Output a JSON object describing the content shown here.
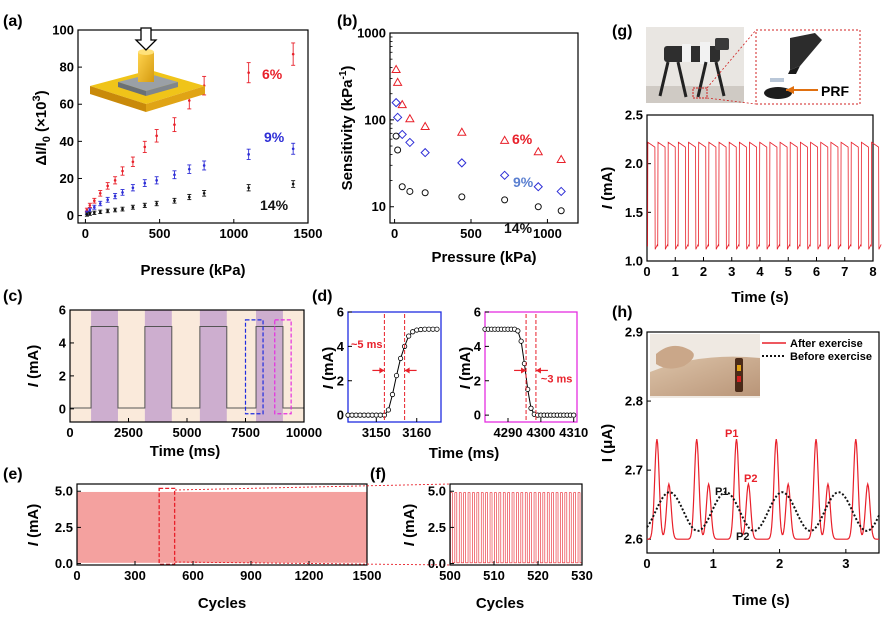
{
  "chart_data": [
    {
      "id": "a",
      "type": "scatter",
      "panel_label": "(a)",
      "xlabel": "Pressure (kPa)",
      "ylabel": "ΔI/I0 (×10³)",
      "xlim": [
        -50,
        1500
      ],
      "ylim": [
        -4,
        100
      ],
      "xticks": [
        0,
        500,
        1000,
        1500
      ],
      "yticks": [
        0,
        20,
        40,
        60,
        80,
        100
      ],
      "xtick_labels": [
        "0",
        "500",
        "1000",
        "1500"
      ],
      "ytick_labels": [
        "0",
        "20",
        "40",
        "60",
        "80",
        "100"
      ],
      "series": [
        {
          "name": "6%",
          "color": "#e8202a",
          "marker": "errorbar",
          "x": [
            10,
            30,
            60,
            100,
            150,
            200,
            250,
            320,
            400,
            480,
            600,
            700,
            800,
            1100,
            1400
          ],
          "y": [
            3,
            5.5,
            8,
            12,
            16,
            19,
            24,
            29,
            37,
            43,
            49,
            62,
            70,
            77,
            87
          ]
        },
        {
          "name": "9%",
          "color": "#2e2ed6",
          "marker": "errorbar",
          "x": [
            10,
            30,
            60,
            100,
            150,
            200,
            250,
            320,
            400,
            480,
            600,
            700,
            800,
            1100,
            1400
          ],
          "y": [
            1.5,
            3,
            4.5,
            6.5,
            8.5,
            10.5,
            12.5,
            15,
            17.5,
            19,
            22,
            25,
            27,
            33,
            36
          ]
        },
        {
          "name": "14%",
          "color": "#111111",
          "marker": "errorbar",
          "x": [
            10,
            30,
            60,
            100,
            150,
            200,
            250,
            320,
            400,
            480,
            600,
            700,
            800,
            1100,
            1400
          ],
          "y": [
            0.5,
            1,
            1.5,
            2,
            2.5,
            3,
            3.5,
            4.5,
            5.5,
            6.5,
            8,
            10,
            12,
            15,
            17
          ]
        }
      ]
    },
    {
      "id": "b",
      "type": "scatter",
      "panel_label": "(b)",
      "yscale": "log",
      "xlabel": "Pressure (kPa)",
      "ylabel": "Sensitivity (kPa-1)",
      "xlim": [
        -30,
        1200
      ],
      "ylim": [
        6.5,
        1000
      ],
      "xticks": [
        0,
        500,
        1000
      ],
      "yticks": [
        10,
        100,
        1000
      ],
      "xtick_labels": [
        "0",
        "500",
        "1000"
      ],
      "ytick_labels": [
        "10",
        "100",
        "1000"
      ],
      "series": [
        {
          "name": "6%",
          "color": "#e8202a",
          "marker": "triangle",
          "x": [
            10,
            20,
            50,
            100,
            200,
            440,
            720,
            940,
            1090
          ],
          "y": [
            380,
            270,
            150,
            103,
            84,
            72,
            58,
            43,
            35
          ]
        },
        {
          "name": "9%",
          "color": "#2e2ed6",
          "marker": "diamond",
          "x": [
            10,
            20,
            50,
            100,
            200,
            440,
            720,
            940,
            1090
          ],
          "y": [
            158,
            107,
            68,
            55,
            42,
            32,
            23,
            17,
            15
          ]
        },
        {
          "name": "14%",
          "color": "#111111",
          "marker": "circle",
          "x": [
            10,
            20,
            50,
            100,
            200,
            440,
            720,
            940,
            1090
          ],
          "y": [
            65,
            45,
            17,
            15,
            14.5,
            13,
            12,
            10,
            9
          ]
        }
      ]
    },
    {
      "id": "c",
      "type": "line",
      "panel_label": "(c)",
      "xlabel": "Time (ms)",
      "ylabel": "I (mA)",
      "xlim": [
        0,
        10000
      ],
      "ylim": [
        -0.8,
        6
      ],
      "xticks": [
        0,
        2500,
        5000,
        7500,
        10000
      ],
      "yticks": [
        0,
        2,
        4,
        6
      ],
      "xtick_labels": [
        "0",
        "2500",
        "5000",
        "7500",
        "10000"
      ],
      "ytick_labels": [
        "0",
        "2",
        "4",
        "6"
      ],
      "on_intervals_ms": [
        [
          900,
          2050
        ],
        [
          3200,
          4350
        ],
        [
          5550,
          6700
        ],
        [
          7950,
          9100
        ]
      ],
      "high_mA": 5.0,
      "low_mA": 0.05,
      "highlight_boxes": [
        {
          "color": "#1f2de0",
          "x": [
            7500,
            8250
          ]
        },
        {
          "color": "#e52ee0",
          "x": [
            8750,
            9450
          ]
        }
      ]
    },
    {
      "id": "d1",
      "type": "line",
      "panel_label": "(d)",
      "xlabel": "",
      "ylabel": "I (mA)",
      "xlim": [
        3143,
        3166
      ],
      "ylim": [
        -0.4,
        6
      ],
      "xticks": [
        3150,
        3160
      ],
      "yticks": [
        0,
        2,
        4,
        6
      ],
      "xtick_labels": [
        "3150",
        "3160"
      ],
      "ytick_labels": [
        "0",
        "2",
        "4",
        "6"
      ],
      "x": [
        3143,
        3144,
        3145,
        3146,
        3147,
        3148,
        3149,
        3150,
        3151,
        3152,
        3153,
        3154,
        3155,
        3156,
        3157,
        3158,
        3159,
        3160,
        3161,
        3162,
        3163,
        3164,
        3165
      ],
      "y": [
        0,
        0,
        0,
        0,
        0,
        0,
        0,
        0,
        0,
        0,
        0.3,
        1.2,
        2.3,
        3.3,
        4.0,
        4.6,
        4.85,
        4.95,
        4.98,
        5.0,
        5.0,
        5.0,
        5.0
      ],
      "marker_lines_x": [
        3152,
        3157
      ],
      "annotation": "~5 ms"
    },
    {
      "id": "d2",
      "type": "line",
      "xlabel": "",
      "ylabel": "I (mA)",
      "xlim": [
        4283,
        4311
      ],
      "ylim": [
        -0.4,
        6
      ],
      "xticks": [
        4290,
        4300,
        4310
      ],
      "yticks": [
        0,
        2,
        4,
        6
      ],
      "xtick_labels": [
        "4290",
        "4300",
        "4310"
      ],
      "ytick_labels": [
        "0",
        "2",
        "4",
        "6"
      ],
      "x": [
        4283,
        4284,
        4285,
        4286,
        4287,
        4288,
        4289,
        4290,
        4291,
        4292,
        4293,
        4294,
        4295,
        4296,
        4297,
        4298,
        4299,
        4300,
        4301,
        4302,
        4303,
        4304,
        4305,
        4306,
        4307,
        4308,
        4309,
        4310
      ],
      "y": [
        5,
        5,
        5,
        5,
        5,
        5,
        5,
        5,
        5,
        5,
        4.9,
        4.3,
        3.0,
        1.5,
        0.4,
        0.05,
        0,
        0,
        0,
        0,
        0,
        0,
        0,
        0,
        0,
        0,
        0,
        0
      ],
      "marker_lines_x": [
        4295.5,
        4298.5
      ],
      "annotation": "~3 ms"
    },
    {
      "id": "d-shared",
      "xlabel": "Time (ms)"
    },
    {
      "id": "e",
      "type": "area",
      "panel_label": "(e)",
      "xlabel": "Cycles",
      "ylabel": "I (mA)",
      "xlim": [
        0,
        1500
      ],
      "ylim": [
        -0.1,
        5.5
      ],
      "xticks": [
        0,
        300,
        600,
        900,
        1200,
        1500
      ],
      "yticks": [
        0.0,
        2.5,
        5.0
      ],
      "xtick_labels": [
        "0",
        "300",
        "600",
        "900",
        "1200",
        "1500"
      ],
      "ytick_labels": [
        "0.0",
        "2.5",
        "5.0"
      ],
      "high_mA": 4.95,
      "low_mA": 0.05,
      "zoom_box_x": [
        425,
        505
      ]
    },
    {
      "id": "f",
      "type": "line",
      "panel_label": "(f)",
      "xlabel": "Cycles",
      "ylabel": "I (mA)",
      "xlim": [
        500,
        530
      ],
      "ylim": [
        -0.1,
        5.5
      ],
      "xticks": [
        500,
        510,
        520,
        530
      ],
      "yticks": [
        0.0,
        2.5,
        5.0
      ],
      "xtick_labels": [
        "500",
        "510",
        "520",
        "530"
      ],
      "ytick_labels": [
        "0.0",
        "2.5",
        "5.0"
      ],
      "cycles_shown": 30,
      "high_mA": 4.9,
      "low_mA": 0.05
    },
    {
      "id": "g",
      "type": "line",
      "panel_label": "(g)",
      "xlabel": "Time (s)",
      "ylabel": "I (mA)",
      "xlim": [
        0,
        8
      ],
      "ylim": [
        1.0,
        2.5
      ],
      "xticks": [
        0,
        1,
        2,
        3,
        4,
        5,
        6,
        7,
        8
      ],
      "yticks": [
        1.0,
        1.5,
        2.0,
        2.5
      ],
      "xtick_labels": [
        "0",
        "1",
        "2",
        "3",
        "4",
        "5",
        "6",
        "7",
        "8"
      ],
      "ytick_labels": [
        "1.0",
        "1.5",
        "2.0",
        "2.5"
      ],
      "step_period_s": 0.36,
      "high_mA": 2.2,
      "low_mA": 1.12,
      "inset_label": "PRF"
    },
    {
      "id": "h",
      "type": "line",
      "panel_label": "(h)",
      "xlabel": "Time (s)",
      "ylabel": "I (μA)",
      "xlim": [
        0,
        3.5
      ],
      "ylim": [
        2.58,
        2.9
      ],
      "xticks": [
        0,
        1,
        2,
        3
      ],
      "yticks": [
        2.6,
        2.7,
        2.8,
        2.9
      ],
      "xtick_labels": [
        "0",
        "1",
        "2",
        "3"
      ],
      "ytick_labels": [
        "2.6",
        "2.7",
        "2.8",
        "2.9"
      ],
      "series": [
        {
          "name": "After exercise",
          "color": "#e8202a",
          "style": "solid",
          "period_s": 0.6,
          "peak": 2.745,
          "trough": 2.6
        },
        {
          "name": "Before exercise",
          "color": "#111111",
          "style": "dotted",
          "period_s": 0.85,
          "peak": 2.668,
          "trough": 2.612
        }
      ],
      "annotations": [
        "P1",
        "P2",
        "P1",
        "P2"
      ]
    }
  ]
}
